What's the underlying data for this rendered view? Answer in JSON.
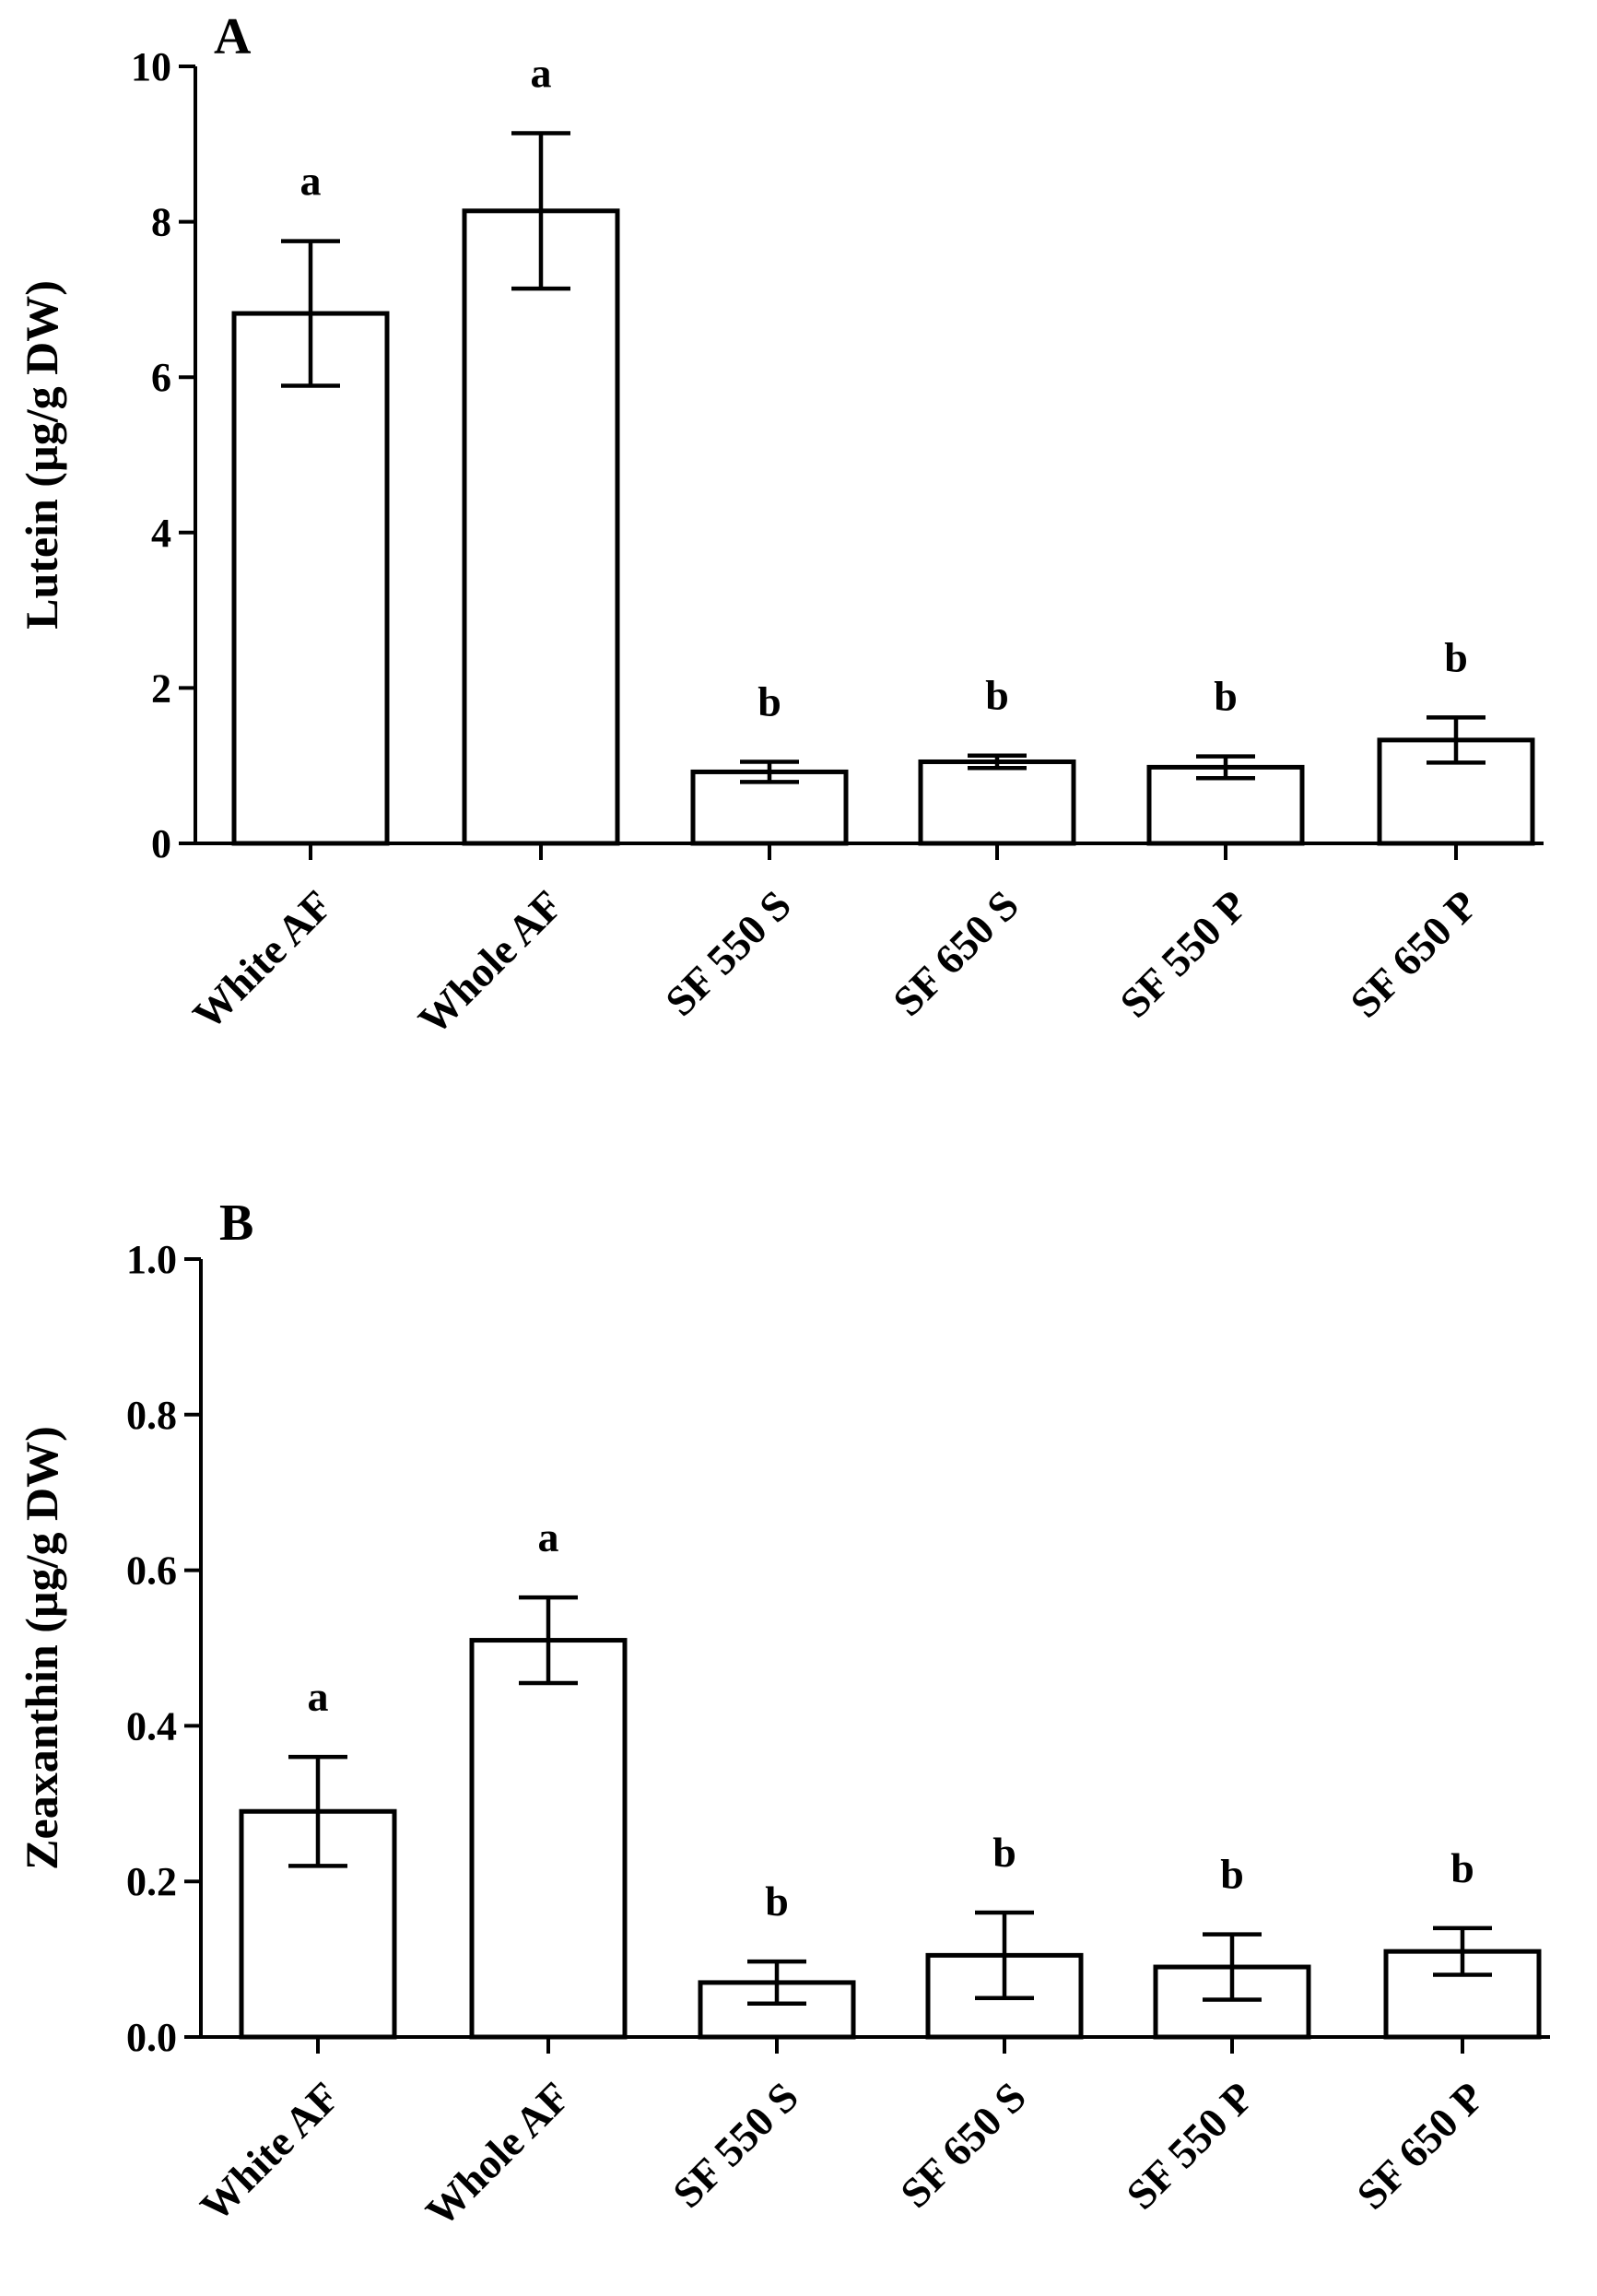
{
  "chart_data": [
    {
      "type": "bar",
      "panel_label": "A",
      "title": "",
      "xlabel": "",
      "ylabel": "Lutein (µg/g DW)",
      "ylim": [
        0,
        10
      ],
      "ytick_values": [
        0,
        2,
        4,
        6,
        8,
        10
      ],
      "ytick_labels": [
        "0",
        "2",
        "4",
        "6",
        "8",
        "10"
      ],
      "categories": [
        "White AF",
        "Whole AF",
        "SF 550 S",
        "SF 650 S",
        "SF 550 P",
        "SF 650 P"
      ],
      "values": [
        6.82,
        8.14,
        0.92,
        1.05,
        0.98,
        1.33
      ],
      "errors": [
        0.93,
        1.0,
        0.13,
        0.08,
        0.14,
        0.29
      ],
      "significance": [
        "a",
        "a",
        "b",
        "b",
        "b",
        "b"
      ]
    },
    {
      "type": "bar",
      "panel_label": "B",
      "title": "",
      "xlabel": "",
      "ylabel": "Zeaxanthin (µg/g DW)",
      "ylim": [
        0,
        1.0
      ],
      "ytick_values": [
        0,
        0.2,
        0.4,
        0.6,
        0.8,
        1.0
      ],
      "ytick_labels": [
        "0.0",
        "0.2",
        "0.4",
        "0.6",
        "0.8",
        "1.0"
      ],
      "categories": [
        "White AF",
        "Whole AF",
        "SF 550 S",
        "SF 650 S",
        "SF 550 P",
        "SF 650 P"
      ],
      "values": [
        0.29,
        0.51,
        0.07,
        0.105,
        0.09,
        0.11
      ],
      "errors": [
        0.07,
        0.055,
        0.027,
        0.055,
        0.042,
        0.03
      ],
      "significance": [
        "a",
        "a",
        "b",
        "b",
        "b",
        "b"
      ]
    }
  ]
}
